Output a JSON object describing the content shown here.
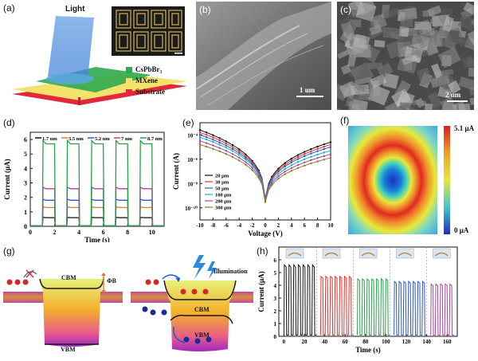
{
  "panels": {
    "a": {
      "label": "(a)",
      "light": "Light",
      "legend": [
        "CsPbBr₃",
        "MXene",
        "Substrate"
      ],
      "legend_colors": [
        "#2fa84f",
        "#f3e36b",
        "#e02a3c"
      ]
    },
    "b": {
      "label": "(b)",
      "scale": "1 um"
    },
    "c": {
      "label": "(c)",
      "scale": "2 um"
    },
    "f": {
      "label": "(f)",
      "cbar_max": "5.1 μA",
      "cbar_min": "0 μA"
    },
    "g": {
      "label": "(g)",
      "cbm": "CBM",
      "vbm": "VBM",
      "phi": "ΦB",
      "illum": "Illumination"
    }
  },
  "chart_data": [
    {
      "id": "d",
      "label": "(d)",
      "type": "line",
      "xlabel": "Time (s)",
      "ylabel": "Current (μA)",
      "xlim": [
        0,
        11
      ],
      "ylim": [
        0,
        6.5
      ],
      "xticks": [
        "0",
        "2",
        "4",
        "6",
        "8",
        "10"
      ],
      "yticks": [
        "0",
        "1",
        "2",
        "3",
        "4",
        "5",
        "6"
      ],
      "periods": [
        1,
        3,
        5,
        7,
        9
      ],
      "on_duration": 1,
      "series": [
        {
          "name": "1.7 nm",
          "color": "#111111",
          "on": 0.6
        },
        {
          "name": "3.5 nm",
          "color": "#e07a2a",
          "on": 1.3
        },
        {
          "name": "5.2 nm",
          "color": "#2a58c7",
          "on": 1.8
        },
        {
          "name": "7 nm",
          "color": "#b0409a",
          "on": 2.6
        },
        {
          "name": "8.7 nm",
          "color": "#28a04a",
          "on": 5.7
        }
      ]
    },
    {
      "id": "e",
      "label": "(e)",
      "type": "line",
      "xlabel": "Voltage (V)",
      "ylabel": "Current (A)",
      "xlim": [
        -10,
        10
      ],
      "ylim_log": [
        -11,
        -3
      ],
      "yscale": "log",
      "xticks": [
        "-10",
        "-8",
        "-6",
        "-4",
        "-2",
        "0",
        "2",
        "4",
        "6",
        "8",
        "10"
      ],
      "yticks": [
        "10⁻¹⁰",
        "10⁻⁸",
        "10⁻⁶",
        "10⁻⁴"
      ],
      "series": [
        {
          "name": "20 μm",
          "color": "#111111",
          "end_left": -3.6,
          "end_right": -4.6
        },
        {
          "name": "30 μm",
          "color": "#e0342c",
          "end_left": -3.8,
          "end_right": -4.8
        },
        {
          "name": "50 μm",
          "color": "#2a58c7",
          "end_left": -4.0,
          "end_right": -5.0
        },
        {
          "name": "100 μm",
          "color": "#1fb0b0",
          "end_left": -4.2,
          "end_right": -5.3
        },
        {
          "name": "200 μm",
          "color": "#b0409a",
          "end_left": -4.5,
          "end_right": -5.6
        },
        {
          "name": "300 μm",
          "color": "#8a7a2a",
          "end_left": -4.8,
          "end_right": -5.9
        }
      ]
    },
    {
      "id": "h",
      "label": "(h)",
      "type": "line",
      "xlabel": "Time (s)",
      "ylabel": "Current (μA)",
      "xlim": [
        -5,
        170
      ],
      "ylim": [
        0,
        7
      ],
      "xticks": [
        "0",
        "20",
        "40",
        "60",
        "80",
        "100",
        "120",
        "140",
        "160"
      ],
      "yticks": [
        "0",
        "1",
        "2",
        "3",
        "4",
        "5",
        "6"
      ],
      "segments": [
        {
          "t0": 0,
          "t1": 28,
          "on": 5.6,
          "color": "#111111"
        },
        {
          "t0": 36,
          "t1": 64,
          "on": 4.7,
          "color": "#e0342c"
        },
        {
          "t0": 72,
          "t1": 100,
          "on": 4.5,
          "color": "#28a04a"
        },
        {
          "t0": 108,
          "t1": 136,
          "on": 4.3,
          "color": "#2a58c7"
        },
        {
          "t0": 144,
          "t1": 166,
          "on": 4.1,
          "color": "#b0409a"
        }
      ]
    }
  ]
}
